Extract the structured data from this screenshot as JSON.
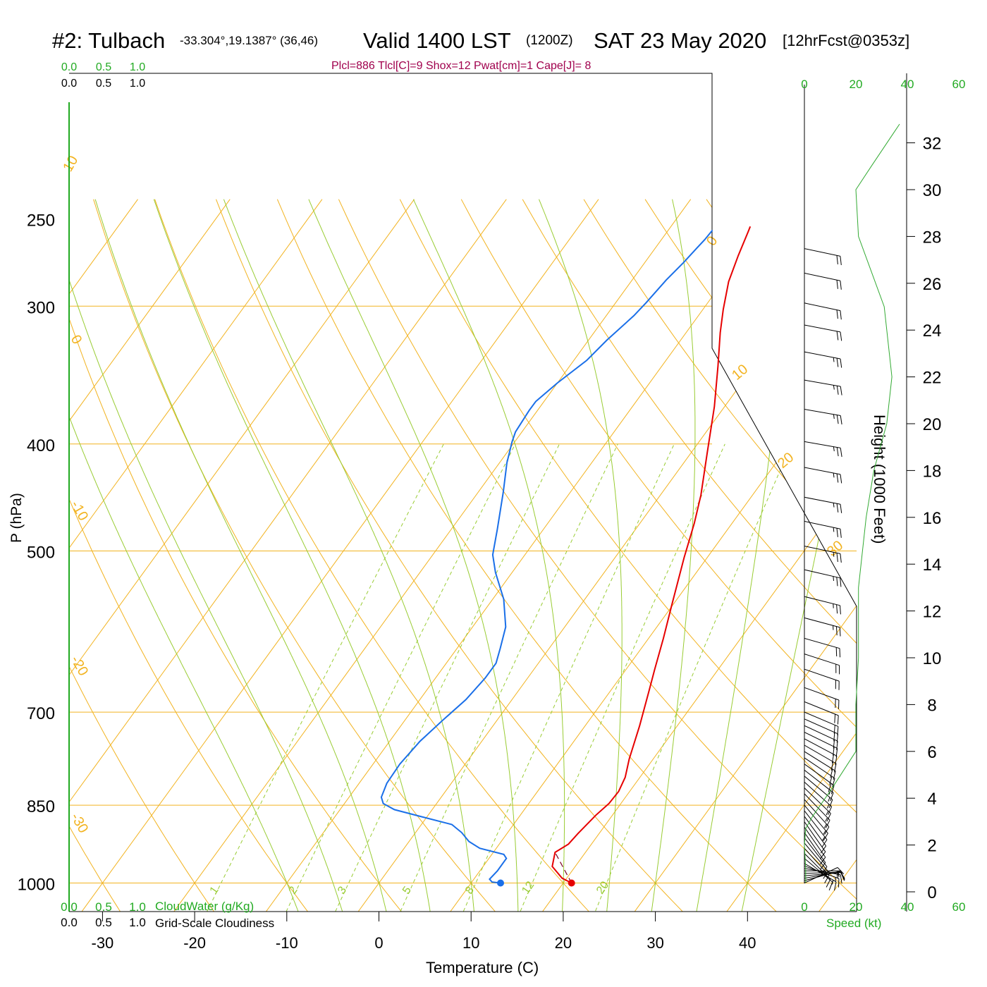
{
  "header": {
    "station": "#2: Tulbach",
    "coords": "-33.304°,19.1387° (36,46)",
    "valid": "Valid 1400 LST",
    "utc": "(1200Z)",
    "date": "SAT 23 May 2020",
    "forecast": "[12hrFcst@0353z]",
    "indices": "Plcl=886 Tlcl[C]=9 Shox=12 Pwat[cm]=1 Cape[J]= 8"
  },
  "colors": {
    "temperature": "#e60000",
    "dewpoint": "#1a6fe8",
    "isotherm": "#f2b320",
    "moist_adiabat": "#99cc33",
    "mixing_ratio": "#99cc33",
    "title_accent": "#a0004d",
    "green_text": "#22aa22",
    "speed_curve": "#33aa33",
    "parcel": "#7a0020"
  },
  "chart_data": {
    "type": "line",
    "title": "#2: Tulbach",
    "xlabel": "Temperature (C)",
    "ylabel": "P (hPa)",
    "x_ticks": [
      "-30",
      "-20",
      "-10",
      "0",
      "10",
      "20",
      "30",
      "40"
    ],
    "x_tick_values": [
      -30,
      -20,
      -10,
      0,
      10,
      20,
      30,
      40
    ],
    "p_ticks": [
      "250",
      "300",
      "400",
      "500",
      "700",
      "850",
      "1000"
    ],
    "p_tick_values": [
      250,
      300,
      400,
      500,
      700,
      850,
      1000
    ],
    "p_scale": "log",
    "series": [
      {
        "name": "Temperature",
        "points": [
          [
            20.9,
            1000
          ],
          [
            19.5,
            990
          ],
          [
            17.5,
            966
          ],
          [
            16.7,
            938
          ],
          [
            17.5,
            922
          ],
          [
            17.7,
            902
          ],
          [
            18.2,
            868
          ],
          [
            18.7,
            847
          ],
          [
            18.8,
            826
          ],
          [
            18.4,
            802
          ],
          [
            17.4,
            772
          ],
          [
            15.9,
            720
          ],
          [
            14.2,
            670
          ],
          [
            13.1,
            640
          ],
          [
            11.6,
            600
          ],
          [
            9.9,
            560
          ],
          [
            8.8,
            535
          ],
          [
            7.5,
            507
          ],
          [
            5.9,
            472
          ],
          [
            4.4,
            445
          ],
          [
            1.8,
            408
          ],
          [
            -1.1,
            370
          ],
          [
            -3.9,
            340
          ],
          [
            -6.3,
            317
          ],
          [
            -7.8,
            302
          ],
          [
            -9.4,
            285
          ],
          [
            -10.4,
            270
          ],
          [
            -11.2,
            257
          ],
          [
            -11.4,
            254
          ]
        ]
      },
      {
        "name": "Dewpoint",
        "points": [
          [
            13.2,
            1000
          ],
          [
            12.2,
            998
          ],
          [
            11.7,
            992
          ],
          [
            11.9,
            975
          ],
          [
            11.9,
            950
          ],
          [
            11.3,
            942
          ],
          [
            8.2,
            930
          ],
          [
            6.5,
            917
          ],
          [
            5.0,
            900
          ],
          [
            3.3,
            885
          ],
          [
            -0.8,
            870
          ],
          [
            -4.1,
            858
          ],
          [
            -5.8,
            847
          ],
          [
            -6.5,
            836
          ],
          [
            -7.0,
            812
          ],
          [
            -7.1,
            780
          ],
          [
            -6.7,
            744
          ],
          [
            -5.9,
            712
          ],
          [
            -5.0,
            682
          ],
          [
            -4.6,
            652
          ],
          [
            -4.6,
            632
          ],
          [
            -5.3,
            613
          ],
          [
            -6.4,
            586
          ],
          [
            -8.8,
            553
          ],
          [
            -11.8,
            523
          ],
          [
            -13.5,
            504
          ],
          [
            -15.0,
            478
          ],
          [
            -17.3,
            442
          ],
          [
            -19.2,
            416
          ],
          [
            -20.3,
            398
          ],
          [
            -20.7,
            390
          ],
          [
            -20.9,
            373
          ],
          [
            -20.9,
            366
          ],
          [
            -20.0,
            352
          ],
          [
            -18.6,
            336
          ],
          [
            -18.0,
            322
          ],
          [
            -17.0,
            306
          ],
          [
            -16.7,
            298
          ],
          [
            -16.3,
            284
          ],
          [
            -15.8,
            274
          ],
          [
            -15.5,
            266
          ],
          [
            -15.3,
            261
          ],
          [
            -15.2,
            256
          ]
        ]
      },
      {
        "name": "Parcel",
        "points": [
          [
            20.9,
            1000
          ],
          [
            16.7,
            938
          ]
        ]
      }
    ],
    "isotherm_labels": [
      "10",
      "0",
      "-10",
      "-20",
      "-30",
      "0",
      "10",
      "20",
      "30"
    ],
    "isotherm_label_values": [
      10,
      0,
      -10,
      -20,
      -30,
      0,
      10,
      20,
      30
    ],
    "mixing_ratio_labels": [
      "1",
      "2",
      "3",
      "5",
      "8",
      "12",
      "20"
    ],
    "mixing_ratio_values": [
      1,
      2,
      3,
      5,
      8,
      12,
      20
    ],
    "cloud_scale_labels": [
      "0.0",
      "0.5",
      "1.0"
    ],
    "cloud_water_label": "CloudWater (g/Kg)",
    "cloudiness_label": "Grid-Scale Cloudiness",
    "height_axis": {
      "label": "Height (1000 Feet)",
      "ticks": [
        "0",
        "2",
        "4",
        "6",
        "8",
        "10",
        "12",
        "14",
        "16",
        "18",
        "20",
        "22",
        "24",
        "26",
        "28",
        "30",
        "32"
      ],
      "tick_values": [
        0,
        2,
        4,
        6,
        8,
        10,
        12,
        14,
        16,
        18,
        20,
        22,
        24,
        26,
        28,
        30,
        32
      ]
    },
    "speed_axis": {
      "label": "Speed (kt)",
      "ticks": [
        "0",
        "20",
        "40",
        "60"
      ],
      "tick_values": [
        0,
        20,
        40,
        60
      ],
      "profile_kft_kt": [
        [
          0.4,
          0.5
        ],
        [
          1,
          0.5
        ],
        [
          2,
          0
        ],
        [
          2.7,
          0.5
        ],
        [
          3.2,
          3
        ],
        [
          4.3,
          10
        ],
        [
          6,
          20
        ],
        [
          8,
          20
        ],
        [
          10,
          21
        ],
        [
          12,
          21
        ],
        [
          13,
          21
        ],
        [
          16,
          24
        ],
        [
          18,
          27
        ],
        [
          20,
          32
        ],
        [
          22,
          34
        ],
        [
          25,
          31
        ],
        [
          28,
          21
        ],
        [
          30,
          20
        ],
        [
          31,
          26
        ],
        [
          32.8,
          37
        ]
      ]
    },
    "wind_barbs": {
      "pressures": [
        1000,
        995,
        990,
        985,
        980,
        975,
        970,
        965,
        960,
        950,
        940,
        930,
        920,
        910,
        900,
        890,
        880,
        870,
        860,
        850,
        840,
        830,
        820,
        810,
        800,
        790,
        780,
        770,
        760,
        750,
        740,
        730,
        720,
        710,
        700,
        685,
        665,
        640,
        620,
        600,
        575,
        550,
        520,
        495,
        470,
        447,
        420,
        398,
        372,
        350,
        330,
        312,
        298,
        280,
        266
      ],
      "dir_deg": [
        245,
        255,
        260,
        265,
        268,
        270,
        280,
        290,
        300,
        310,
        315,
        318,
        320,
        322,
        325,
        325,
        325,
        324,
        322,
        320,
        318,
        316,
        314,
        312,
        310,
        308,
        306,
        304,
        302,
        300,
        298,
        296,
        295,
        294,
        293,
        292,
        290,
        289,
        288,
        286,
        285,
        284,
        283,
        282,
        282,
        281,
        281,
        280,
        280,
        280,
        281,
        281,
        282,
        282,
        282
      ],
      "speed_kt": [
        10,
        12,
        14,
        16,
        18,
        18,
        18,
        17,
        16,
        14,
        13,
        12,
        12,
        12,
        12,
        12,
        13,
        14,
        15,
        16,
        17,
        18,
        18,
        19,
        19,
        19,
        20,
        20,
        20,
        20,
        20,
        20,
        20,
        20,
        20,
        21,
        21,
        22,
        23,
        24,
        25,
        25,
        26,
        27,
        28,
        28,
        28,
        28,
        27,
        26,
        25,
        24,
        22,
        21,
        20
      ]
    }
  }
}
